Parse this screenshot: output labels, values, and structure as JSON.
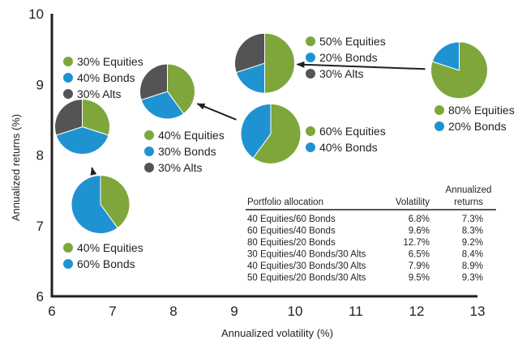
{
  "chart_data": {
    "type": "scatter",
    "xlabel": "Annualized volatility (%)",
    "ylabel": "Annualized returns (%)",
    "xlim": [
      6,
      13
    ],
    "ylim": [
      6,
      10
    ],
    "x_ticks": [
      "6",
      "7",
      "8",
      "9",
      "10",
      "11",
      "12",
      "13"
    ],
    "y_ticks": [
      "6",
      "7",
      "8",
      "9",
      "10"
    ],
    "grid": false,
    "colors": {
      "Equities": "#7ea63b",
      "Bonds": "#1f93d1",
      "Alts": "#545454"
    },
    "points": [
      {
        "x": 6.8,
        "y": 7.3,
        "slices": [
          {
            "asset": "Equities",
            "pct": 40
          },
          {
            "asset": "Bonds",
            "pct": 60
          }
        ],
        "legend": [
          "40% Equities",
          "60% Bonds"
        ]
      },
      {
        "x": 9.6,
        "y": 8.3,
        "slices": [
          {
            "asset": "Equities",
            "pct": 60
          },
          {
            "asset": "Bonds",
            "pct": 40
          }
        ],
        "legend": [
          "60% Equities",
          "40% Bonds"
        ]
      },
      {
        "x": 12.7,
        "y": 9.2,
        "slices": [
          {
            "asset": "Equities",
            "pct": 80
          },
          {
            "asset": "Bonds",
            "pct": 20
          }
        ],
        "legend": [
          "80% Equities",
          "20% Bonds"
        ]
      },
      {
        "x": 6.5,
        "y": 8.4,
        "slices": [
          {
            "asset": "Equities",
            "pct": 30
          },
          {
            "asset": "Bonds",
            "pct": 40
          },
          {
            "asset": "Alts",
            "pct": 30
          }
        ],
        "legend": [
          "30% Equities",
          "40% Bonds",
          "30% Alts"
        ]
      },
      {
        "x": 7.9,
        "y": 8.9,
        "slices": [
          {
            "asset": "Equities",
            "pct": 40
          },
          {
            "asset": "Bonds",
            "pct": 30
          },
          {
            "asset": "Alts",
            "pct": 30
          }
        ],
        "legend": [
          "40% Equities",
          "30% Bonds",
          "30% Alts"
        ]
      },
      {
        "x": 9.5,
        "y": 9.3,
        "slices": [
          {
            "asset": "Equities",
            "pct": 50
          },
          {
            "asset": "Bonds",
            "pct": 20
          },
          {
            "asset": "Alts",
            "pct": 30
          }
        ],
        "legend": [
          "50% Equities",
          "20% Bonds",
          "30% Alts"
        ]
      }
    ],
    "arrows": [
      {
        "from": [
          6.8,
          7.3
        ],
        "to": [
          6.5,
          8.4
        ]
      },
      {
        "from": [
          9.6,
          8.3
        ],
        "to": [
          7.9,
          8.9
        ]
      },
      {
        "from": [
          12.7,
          9.2
        ],
        "to": [
          9.5,
          9.3
        ]
      }
    ],
    "table": {
      "headers": [
        "Portfolio allocation",
        "Volatility",
        "Annualized",
        "returns"
      ],
      "rows": [
        [
          "40 Equities/60 Bonds",
          "6.8%",
          "7.3%"
        ],
        [
          "60 Equities/40 Bonds",
          "9.6%",
          "8.3%"
        ],
        [
          "80 Equities/20 Bonds",
          "12.7%",
          "9.2%"
        ],
        [
          "30 Equities/40 Bonds/30 Alts",
          "6.5%",
          "8.4%"
        ],
        [
          "40 Equities/30 Bonds/30 Alts",
          "7.9%",
          "8.9%"
        ],
        [
          "50 Equities/20 Bonds/30 Alts",
          "9.5%",
          "9.3%"
        ]
      ]
    }
  }
}
